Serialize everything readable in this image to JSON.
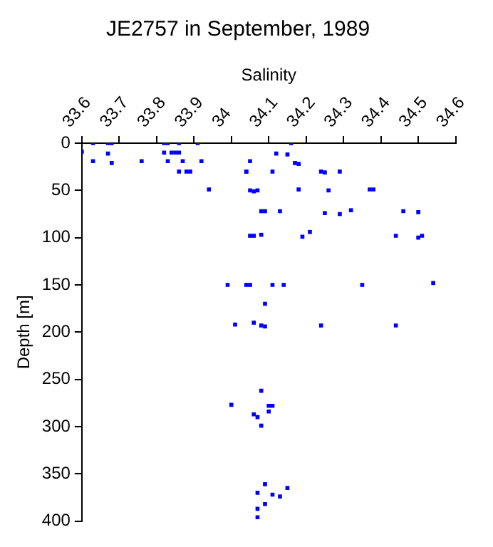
{
  "chart_data": {
    "type": "scatter",
    "title": "JE2757 in September, 1989",
    "xlabel": "Salinity",
    "ylabel": "Depth [m]",
    "marker": "square",
    "xlim": [
      33.6,
      34.6
    ],
    "xticks": [
      33.6,
      33.7,
      33.8,
      33.9,
      34,
      34.1,
      34.2,
      34.3,
      34.4,
      34.5,
      34.6
    ],
    "ylim": [
      400,
      0
    ],
    "yticks": [
      0,
      50,
      100,
      150,
      200,
      250,
      300,
      350,
      400
    ],
    "series": [
      {
        "color": "#0000ff",
        "x": [
          33.6,
          33.63,
          33.63,
          33.67,
          33.68,
          33.67,
          33.68,
          33.76,
          33.82,
          33.83,
          33.82,
          33.84,
          33.85,
          33.83,
          33.86,
          33.86,
          33.87,
          33.86,
          33.88,
          33.89,
          33.91,
          33.92,
          33.94,
          34.04,
          34.05,
          34.16,
          34.12,
          34.15,
          34.17,
          34.18,
          34.04,
          34.11,
          34.24,
          34.25,
          34.29,
          34.05,
          34.06,
          34.07,
          34.18,
          34.26,
          34.37,
          34.38,
          34.08,
          34.09,
          34.13,
          34.25,
          34.29,
          34.32,
          34.46,
          34.5,
          34.05,
          34.06,
          34.08,
          34.19,
          34.21,
          34.44,
          34.5,
          34.51,
          33.99,
          34.04,
          34.05,
          34.11,
          34.14,
          34.35,
          34.54,
          34.09,
          34.01,
          34.06,
          34.08,
          34.09,
          34.24,
          34.44,
          34.08,
          34,
          34.1,
          34.11,
          34.1,
          34.06,
          34.07,
          34.08,
          34.09,
          34.15,
          34.07,
          34.11,
          34.13,
          34.09,
          34.07,
          34.07
        ],
        "values": [
          9,
          0,
          19,
          0,
          0,
          11,
          21,
          19,
          0,
          0,
          10,
          10,
          10,
          19,
          0,
          10,
          19,
          30,
          30,
          30,
          0,
          19,
          49,
          30,
          19,
          0,
          11,
          12,
          21,
          22,
          30,
          30,
          30,
          31,
          30,
          50,
          51,
          50,
          49,
          50,
          49,
          49,
          72,
          72,
          72,
          74,
          75,
          71,
          72,
          73,
          98,
          98,
          97,
          99,
          94,
          98,
          100,
          98,
          150,
          150,
          150,
          150,
          150,
          150,
          148,
          170,
          192,
          190,
          193,
          194,
          193,
          193,
          262,
          277,
          278,
          278,
          284,
          287,
          290,
          299,
          361,
          365,
          370,
          372,
          374,
          382,
          387,
          396
        ]
      }
    ]
  }
}
